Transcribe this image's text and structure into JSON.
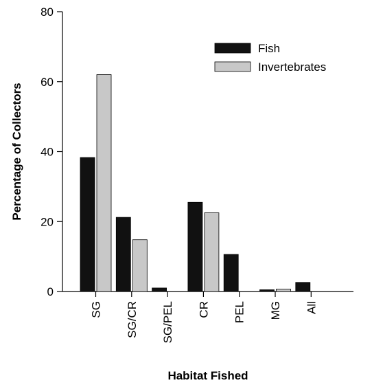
{
  "chart_data": {
    "type": "bar",
    "xlabel": "Habitat Fished",
    "ylabel": "Percentage of Collectors",
    "ylim": [
      0,
      80
    ],
    "yticks": [
      0,
      20,
      40,
      60,
      80
    ],
    "categories": [
      "SG",
      "SG/CR",
      "SG/PEL",
      "CR",
      "PEL",
      "MG",
      "All"
    ],
    "series": [
      {
        "name": "Fish",
        "color": "#111111",
        "values": [
          38.3,
          21.2,
          1.0,
          25.5,
          10.6,
          0.5,
          2.6
        ]
      },
      {
        "name": "Invertebrates",
        "color": "#c8c8c8",
        "values": [
          62.0,
          14.8,
          0,
          22.5,
          0,
          0.7,
          0
        ]
      }
    ],
    "legend": "top-right",
    "grid": false
  }
}
